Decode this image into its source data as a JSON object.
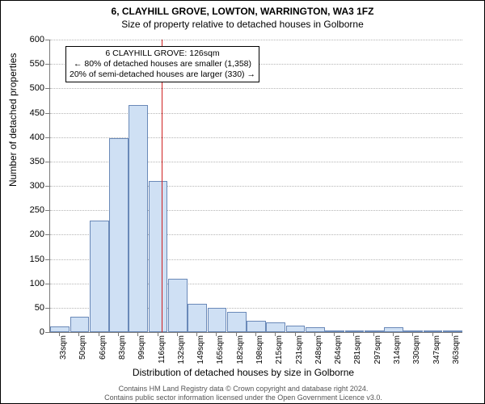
{
  "title_main": "6, CLAYHILL GROVE, LOWTON, WARRINGTON, WA3 1FZ",
  "title_sub": "Size of property relative to detached houses in Golborne",
  "ylabel": "Number of detached properties",
  "xlabel": "Distribution of detached houses by size in Golborne",
  "footer_line1": "Contains HM Land Registry data © Crown copyright and database right 2024.",
  "footer_line2": "Contains public sector information licensed under the Open Government Licence v3.0.",
  "chart": {
    "type": "histogram",
    "ylim": [
      0,
      600
    ],
    "yticks": [
      0,
      50,
      100,
      150,
      200,
      250,
      300,
      350,
      400,
      450,
      500,
      550,
      600
    ],
    "x_categories": [
      "33sqm",
      "50sqm",
      "66sqm",
      "83sqm",
      "99sqm",
      "116sqm",
      "132sqm",
      "149sqm",
      "165sqm",
      "182sqm",
      "198sqm",
      "215sqm",
      "231sqm",
      "248sqm",
      "264sqm",
      "281sqm",
      "297sqm",
      "314sqm",
      "330sqm",
      "347sqm",
      "363sqm"
    ],
    "values": [
      12,
      32,
      228,
      398,
      465,
      310,
      110,
      58,
      50,
      42,
      24,
      20,
      14,
      10,
      4,
      3,
      2,
      10,
      2,
      2,
      2
    ],
    "bar_fill": "#cfe0f4",
    "bar_border": "#6a89b8",
    "grid_color": "#b5b5b5",
    "background": "#ffffff",
    "marker_color": "#d02020",
    "marker_x_index": 5.7,
    "annotation": {
      "line1": "6 CLAYHILL GROVE: 126sqm",
      "line2": "← 80% of detached houses are smaller (1,358)",
      "line3": "20% of semi-detached houses are larger (330) →"
    },
    "title_fontsize": 12,
    "label_fontsize": 12,
    "tick_fontsize": 11
  }
}
